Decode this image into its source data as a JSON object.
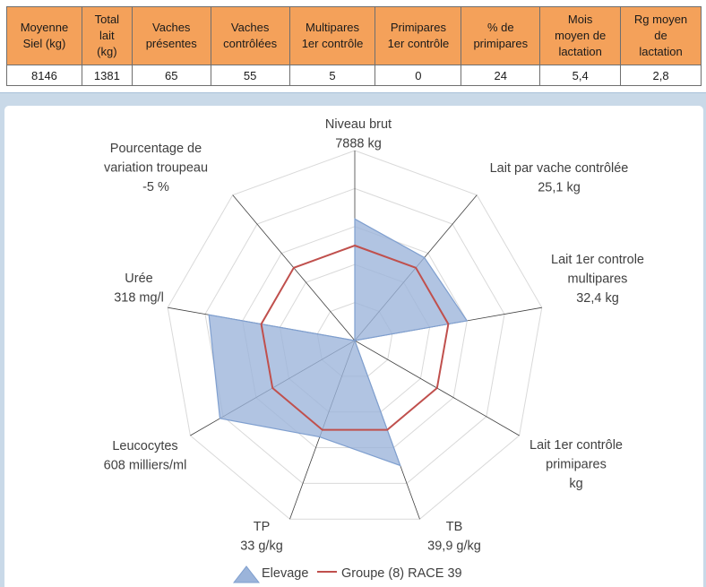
{
  "stats": {
    "headers": [
      "Moyenne\nSiel (kg)",
      "Total\nlait\n(kg)",
      "Vaches\nprésentes",
      "Vaches\ncontrôlées",
      "Multipares\n1er contrôle",
      "Primipares\n1er contrôle",
      "% de\nprimipares",
      "Mois\nmoyen de\nlactation",
      "Rg moyen\nde\nlactation"
    ],
    "values": [
      "8146",
      "1381",
      "65",
      "55",
      "5",
      "0",
      "24",
      "5,4",
      "2,8"
    ]
  },
  "chart_data": {
    "type": "radar",
    "rlim": [
      0,
      5
    ],
    "grid": true,
    "legend_position": "bottom",
    "axes": [
      {
        "lines": [
          "Niveau brut",
          "7888 kg"
        ]
      },
      {
        "lines": [
          "Lait par vache contrôlée",
          "25,1 kg"
        ]
      },
      {
        "lines": [
          "Lait 1er controle",
          "multipares",
          "32,4 kg"
        ]
      },
      {
        "lines": [
          "Lait 1er contrôle",
          "primipares",
          "kg"
        ]
      },
      {
        "lines": [
          "TB",
          "39,9 g/kg"
        ]
      },
      {
        "lines": [
          "TP",
          "33 g/kg"
        ]
      },
      {
        "lines": [
          "Leucocytes",
          "608 milliers/ml"
        ]
      },
      {
        "lines": [
          "Urée",
          "318 mg/l"
        ]
      },
      {
        "lines": [
          "Pourcentage de",
          "variation troupeau",
          "-5 %"
        ]
      }
    ],
    "series": [
      {
        "name": "Elevage",
        "color": "#7f9fcf",
        "fill": "#9bb4da",
        "values": [
          3.2,
          2.85,
          3.0,
          0.0,
          3.5,
          2.7,
          4.1,
          3.9,
          0.0
        ]
      },
      {
        "name": "Groupe (8) RACE 39",
        "color": "#c0504d",
        "values": [
          2.5,
          2.5,
          2.5,
          2.5,
          2.5,
          2.5,
          2.5,
          2.5,
          2.5
        ]
      }
    ]
  }
}
